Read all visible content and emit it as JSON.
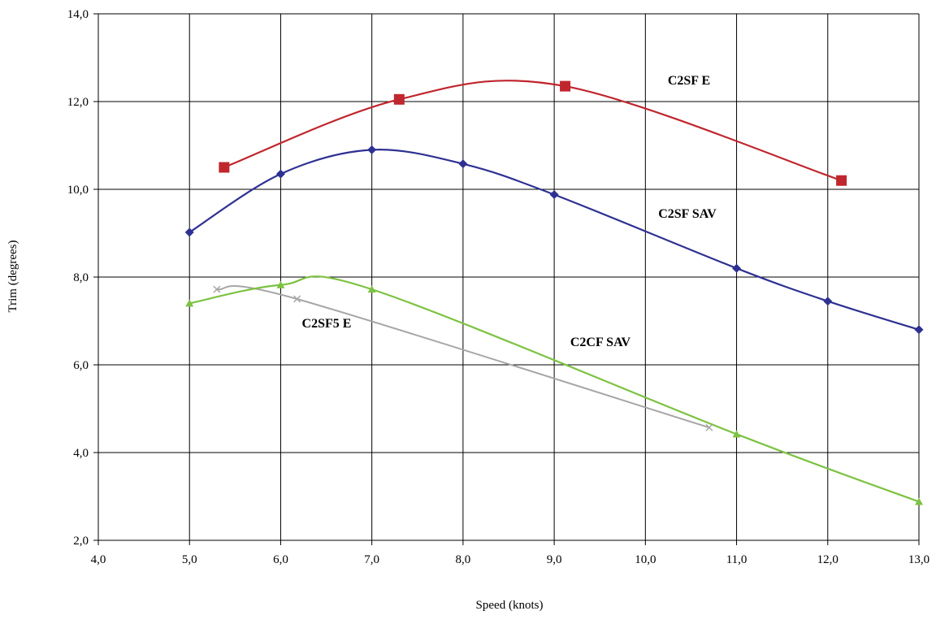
{
  "chart_data": {
    "type": "line",
    "title": "",
    "xlabel": "Speed (knots)",
    "ylabel": "Trim (degrees)",
    "xlim": [
      4.0,
      13.0
    ],
    "ylim": [
      2.0,
      14.0
    ],
    "xticks": [
      "4,0",
      "5,0",
      "6,0",
      "7,0",
      "8,0",
      "9,0",
      "10,0",
      "11,0",
      "12,0",
      "13,0"
    ],
    "yticks": [
      "2,0",
      "4,0",
      "6,0",
      "8,0",
      "10,0",
      "12,0",
      "14,0"
    ],
    "grid": true,
    "legend": "none",
    "series": [
      {
        "name": "C2SF E",
        "color": "#c0262d",
        "marker": "square",
        "x": [
          5.38,
          7.3,
          9.12,
          12.15
        ],
        "y": [
          10.5,
          12.05,
          12.35,
          10.2
        ]
      },
      {
        "name": "C2SF SAV",
        "color": "#2e3192",
        "marker": "diamond",
        "x": [
          5.0,
          6.0,
          7.0,
          8.0,
          9.0,
          11.0,
          12.0,
          13.0
        ],
        "y": [
          9.02,
          10.35,
          10.9,
          10.58,
          9.88,
          8.2,
          7.45,
          6.8
        ]
      },
      {
        "name": "C2SF5 E",
        "color": "#a6a6a6",
        "marker": "x",
        "x": [
          5.3,
          6.18,
          10.7
        ],
        "y": [
          7.72,
          7.5,
          4.57
        ]
      },
      {
        "name": "C2CF SAV",
        "color": "#7dc242",
        "marker": "triangle",
        "x": [
          5.0,
          6.0,
          7.0,
          11.0,
          13.0
        ],
        "y": [
          7.4,
          7.82,
          7.72,
          4.42,
          2.88
        ]
      }
    ]
  }
}
